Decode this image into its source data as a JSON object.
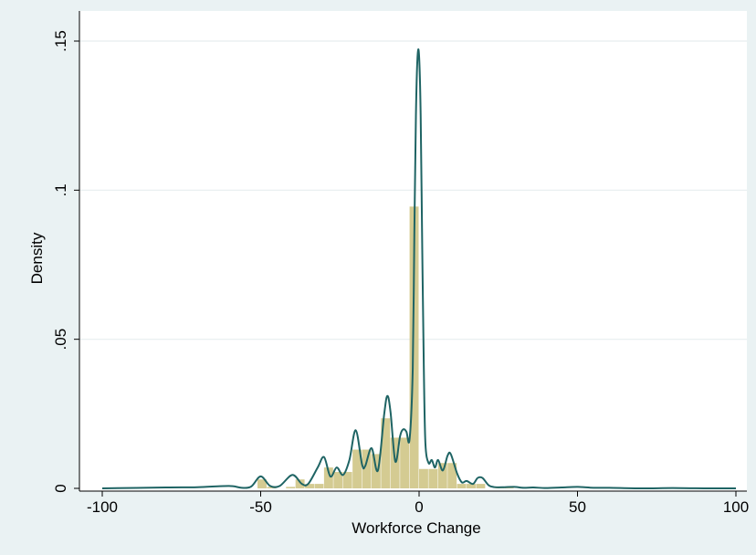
{
  "chart_data": {
    "type": "bar",
    "title": "",
    "xlabel": "Workforce Change",
    "ylabel": "Density",
    "xlim": [
      -100,
      100
    ],
    "ylim": [
      0,
      0.15
    ],
    "xticks": [
      -100,
      -50,
      0,
      50,
      100
    ],
    "xtick_labels": [
      "-100",
      "-50",
      "0",
      "50",
      "100"
    ],
    "yticks": [
      0,
      0.05,
      0.1,
      0.15
    ],
    "ytick_labels": [
      "0",
      ".05",
      ".1",
      ".15"
    ],
    "grid": "horizontal",
    "bar_color": "#d2c88c",
    "line_color": "#1f6464",
    "histogram": {
      "bin_width": 3,
      "bins": [
        {
          "x0": -51,
          "height": 0.003
        },
        {
          "x0": -48,
          "height": 0.0005
        },
        {
          "x0": -42,
          "height": 0.0005
        },
        {
          "x0": -39,
          "height": 0.003
        },
        {
          "x0": -36,
          "height": 0.0015
        },
        {
          "x0": -33,
          "height": 0.0015
        },
        {
          "x0": -30,
          "height": 0.007
        },
        {
          "x0": -27,
          "height": 0.0055
        },
        {
          "x0": -24,
          "height": 0.0055
        },
        {
          "x0": -21,
          "height": 0.013
        },
        {
          "x0": -18,
          "height": 0.013
        },
        {
          "x0": -15,
          "height": 0.0115
        },
        {
          "x0": -12,
          "height": 0.0235
        },
        {
          "x0": -9,
          "height": 0.017
        },
        {
          "x0": -6,
          "height": 0.017
        },
        {
          "x0": -3,
          "height": 0.0945
        },
        {
          "x0": 0,
          "height": 0.0065
        },
        {
          "x0": 3,
          "height": 0.0065
        },
        {
          "x0": 6,
          "height": 0.0085
        },
        {
          "x0": 9,
          "height": 0.0085
        },
        {
          "x0": 12,
          "height": 0.0015
        },
        {
          "x0": 15,
          "height": 0.0015
        },
        {
          "x0": 18,
          "height": 0.0015
        },
        {
          "x0": 24,
          "height": 0.0005
        },
        {
          "x0": 27,
          "height": 0.0005
        }
      ]
    },
    "density_curve": {
      "x": [
        -100,
        -80,
        -70,
        -60,
        -56,
        -53,
        -50,
        -47,
        -44,
        -40,
        -37,
        -35,
        -32,
        -30,
        -28,
        -26,
        -24,
        -22,
        -20,
        -18,
        -17,
        -15,
        -13,
        -11,
        -10,
        -9,
        -7.5,
        -6,
        -5,
        -4,
        -3,
        -2,
        -1.5,
        -1,
        -0.5,
        0,
        0.5,
        1,
        1.5,
        2,
        3,
        4,
        5,
        6,
        7.5,
        9,
        10,
        12,
        13.5,
        15,
        17,
        18.5,
        20,
        22,
        24,
        27,
        30,
        33,
        36,
        40,
        45,
        50,
        55,
        60,
        70,
        80,
        90,
        100
      ],
      "y": [
        0,
        0.0003,
        0.0004,
        0.0008,
        0.0002,
        0.0006,
        0.004,
        0.0008,
        0.0008,
        0.0045,
        0.0015,
        0.0015,
        0.007,
        0.0105,
        0.004,
        0.007,
        0.0045,
        0.0095,
        0.0195,
        0.008,
        0.0075,
        0.0135,
        0.006,
        0.025,
        0.031,
        0.0255,
        0.009,
        0.0175,
        0.0198,
        0.019,
        0.0165,
        0.04,
        0.085,
        0.125,
        0.1445,
        0.145,
        0.125,
        0.08,
        0.04,
        0.015,
        0.0085,
        0.0095,
        0.007,
        0.0095,
        0.006,
        0.011,
        0.0115,
        0.005,
        0.002,
        0.0025,
        0.0015,
        0.0035,
        0.0035,
        0.001,
        0.0004,
        0.0004,
        0.0005,
        0.0002,
        0.0003,
        0.0001,
        0.0003,
        0.0005,
        0.0002,
        0.0002,
        0,
        0.0001,
        0,
        0
      ]
    }
  }
}
